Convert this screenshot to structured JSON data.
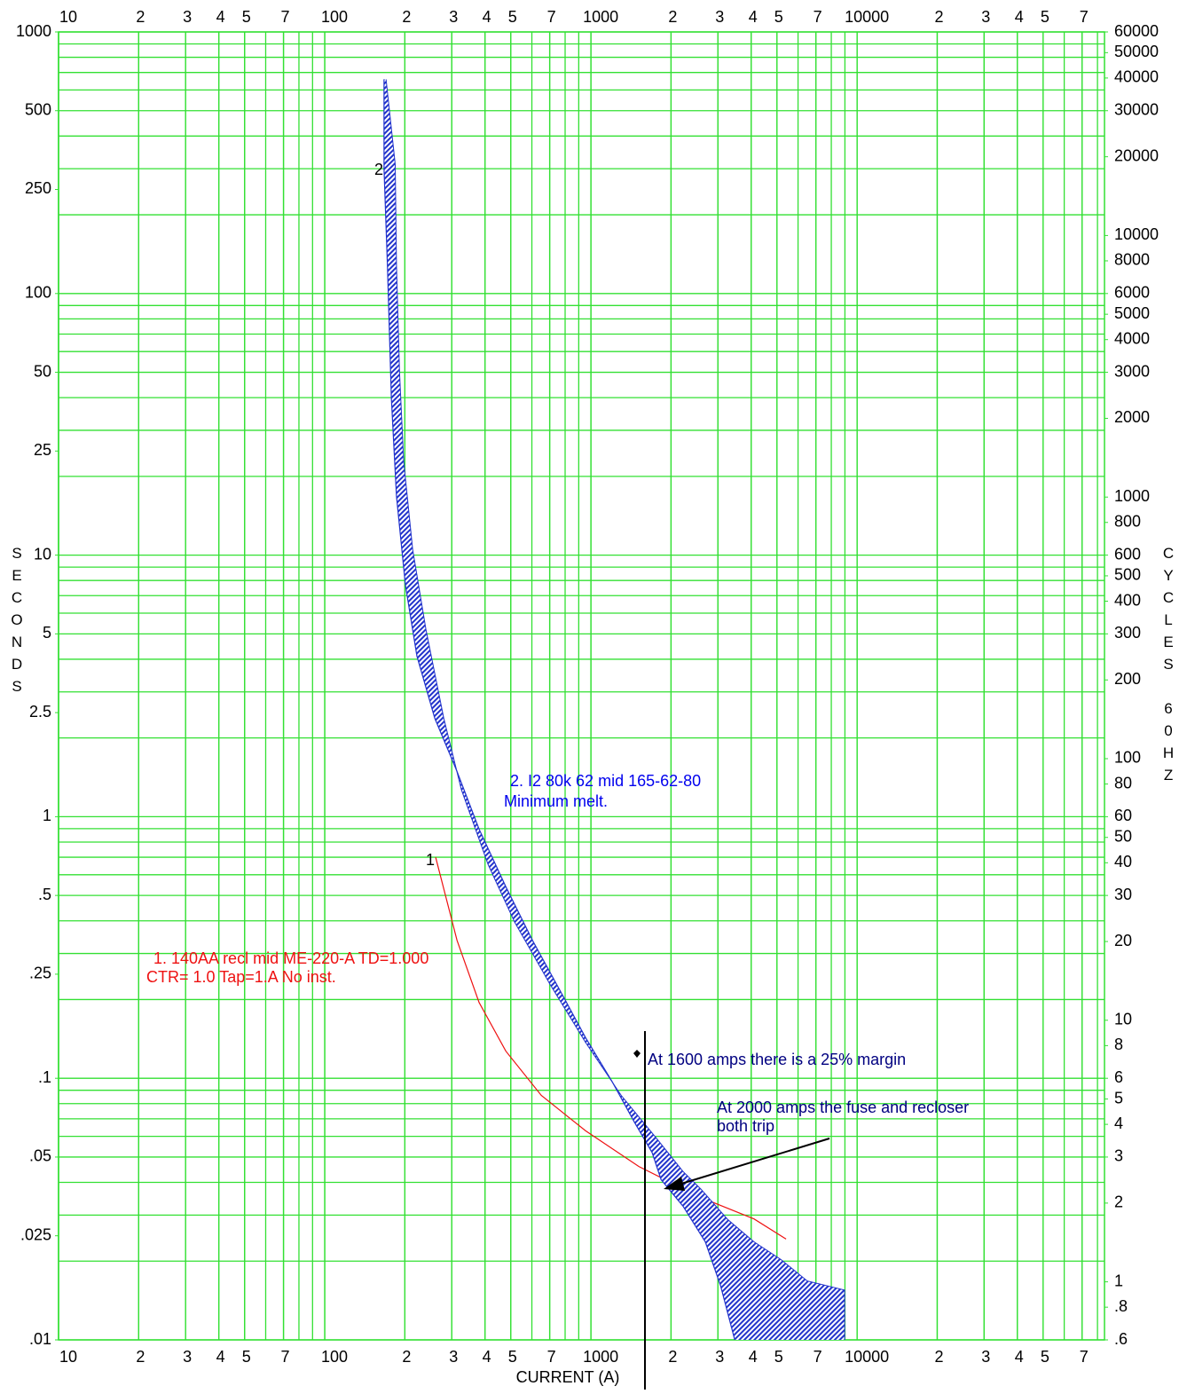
{
  "chart_data": {
    "type": "line",
    "x_label": "CURRENT (A)",
    "y_label": "SECONDS",
    "y2_label": "CYCLES 60HZ",
    "log_x": true,
    "log_y": true,
    "grid": true,
    "grid_color": "#33e033",
    "xlim": [
      10,
      85000
    ],
    "ylim": [
      0.01,
      1000
    ],
    "y2lim": [
      0.6,
      60000
    ],
    "xticks": [
      10,
      {
        "value": 20,
        "label": "2"
      },
      {
        "value": 30,
        "label": "3"
      },
      {
        "value": 40,
        "label": "4"
      },
      {
        "value": 50,
        "label": "5"
      },
      {
        "value": 70,
        "label": "7"
      },
      100,
      {
        "value": 200,
        "label": "2"
      },
      {
        "value": 300,
        "label": "3"
      },
      {
        "value": 400,
        "label": "4"
      },
      {
        "value": 500,
        "label": "5"
      },
      {
        "value": 700,
        "label": "7"
      },
      1000,
      {
        "value": 2000,
        "label": "2"
      },
      {
        "value": 3000,
        "label": "3"
      },
      {
        "value": 4000,
        "label": "4"
      },
      {
        "value": 5000,
        "label": "5"
      },
      {
        "value": 7000,
        "label": "7"
      },
      10000,
      {
        "value": 20000,
        "label": "2"
      },
      {
        "value": 30000,
        "label": "3"
      },
      {
        "value": 40000,
        "label": "4"
      },
      {
        "value": 50000,
        "label": "5"
      },
      {
        "value": 70000,
        "label": "7"
      }
    ],
    "yticks": [
      1000,
      500,
      250,
      100,
      50,
      25,
      10,
      5,
      {
        "value": 2.5,
        "label": "2.5"
      },
      1,
      {
        "value": 0.5,
        "label": ".5"
      },
      {
        "value": 0.25,
        "label": ".25"
      },
      {
        "value": 0.1,
        "label": ".1"
      },
      {
        "value": 0.05,
        "label": ".05"
      },
      {
        "value": 0.025,
        "label": ".025"
      },
      {
        "value": 0.01,
        "label": ".01"
      }
    ],
    "y2ticks": [
      60000,
      50000,
      40000,
      30000,
      20000,
      10000,
      8000,
      6000,
      5000,
      4000,
      3000,
      2000,
      1000,
      800,
      600,
      500,
      400,
      300,
      200,
      100,
      80,
      60,
      50,
      40,
      30,
      20,
      10,
      8,
      6,
      5,
      4,
      3,
      2,
      1,
      {
        "value": 0.8,
        "label": ".8"
      },
      {
        "value": 0.6,
        "label": ".6"
      }
    ],
    "x_grid": [
      10,
      20,
      30,
      40,
      50,
      60,
      70,
      80,
      90,
      100,
      200,
      300,
      400,
      500,
      600,
      700,
      800,
      900,
      1000,
      2000,
      3000,
      4000,
      5000,
      6000,
      7000,
      8000,
      9000,
      10000,
      20000,
      30000,
      40000,
      50000,
      60000,
      70000,
      80000
    ],
    "y_grid": [
      0.01,
      0.02,
      0.03,
      0.04,
      0.05,
      0.06,
      0.07,
      0.08,
      0.09,
      0.1,
      0.2,
      0.3,
      0.4,
      0.5,
      0.6,
      0.7,
      0.8,
      0.9,
      1,
      2,
      3,
      4,
      5,
      6,
      7,
      8,
      9,
      10,
      20,
      30,
      40,
      50,
      60,
      70,
      80,
      90,
      100,
      200,
      300,
      400,
      500,
      600,
      700,
      800,
      900,
      1000
    ],
    "series": [
      {
        "color": "#ee1111",
        "x": [
          261,
          314,
          380,
          479,
          651,
          955,
          1514,
          2590,
          4100,
          5410
        ],
        "values": [
          0.7,
          0.337,
          0.195,
          0.127,
          0.086,
          0.063,
          0.046,
          0.035,
          0.029,
          0.0243
        ]
      },
      {
        "color": "#2233cc",
        "fill": "hatched",
        "x": [
          167,
          167,
          172,
          178,
          186,
          201,
          222,
          259,
          314,
          380,
          479,
          603,
          759,
          955,
          1202,
          1456,
          1698,
          1834,
          2220,
          2690,
          3070,
          3470
        ],
        "values": [
          659,
          300,
          128,
          39.6,
          16.8,
          7.67,
          4.11,
          2.38,
          1.49,
          0.897,
          0.54,
          0.337,
          0.22,
          0.143,
          0.097,
          0.068,
          0.052,
          0.041,
          0.0324,
          0.0237,
          0.0161,
          0.01
        ],
        "x2": [
          170,
          184,
          186,
          191,
          198,
          214,
          240,
          280,
          326,
          411,
          517,
          703,
          955,
          1300,
          1770,
          2220,
          2590,
          3260,
          4100,
          5170,
          6500,
          8980,
          8980
        ],
        "values2": [
          659,
          312,
          128,
          50,
          22.8,
          10.5,
          5.2,
          2.38,
          1.27,
          0.656,
          0.395,
          0.228,
          0.137,
          0.086,
          0.0587,
          0.044,
          0.0377,
          0.0289,
          0.0237,
          0.0203,
          0.0168,
          0.0155,
          0.01
        ]
      }
    ],
    "annotations": {
      "curve2_tag": "2",
      "curve1_tag": "1",
      "curve2_line1": "2. I2 80k 62 mid  165-62-80",
      "curve2_line2": "Minimum melt.",
      "curve1_line1": "1. 140AA recl mid  ME-220-A  TD=1.000",
      "curve1_line2": "CTR=  1.0 Tap=1.A No inst.",
      "note1": "At 1600 amps there is a 25% margin",
      "note2_line1": "At 2000 amps the fuse and recloser",
      "note2_line2": "both trip"
    }
  }
}
